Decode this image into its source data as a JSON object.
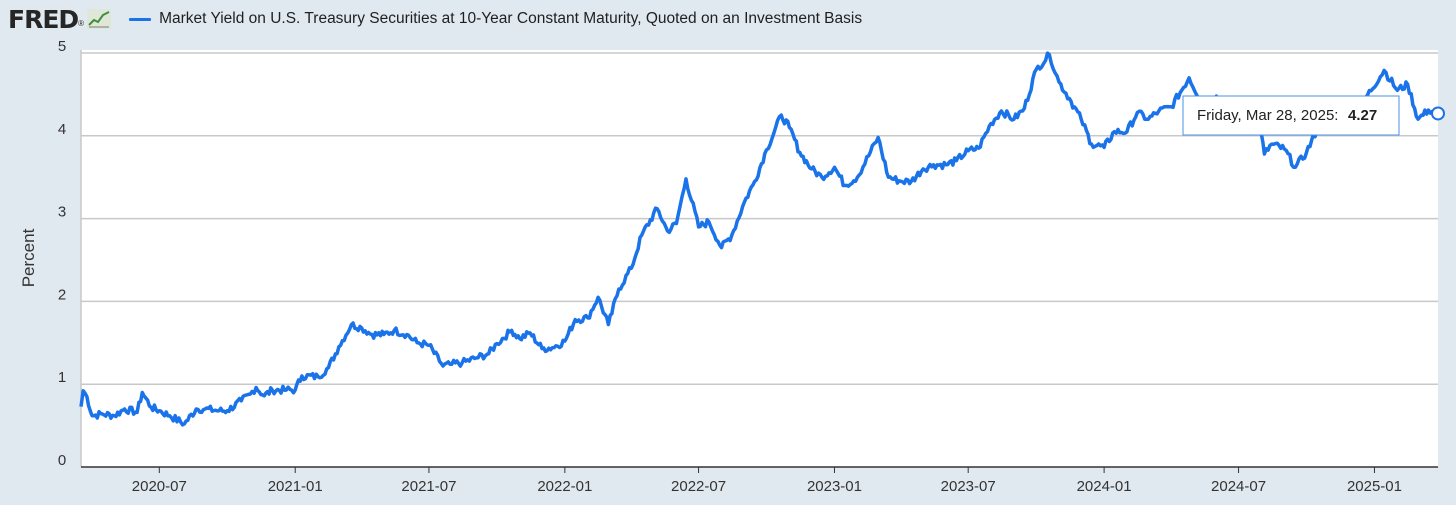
{
  "header": {
    "logo_text": "FRED",
    "logo_reg": "®",
    "logo_icon": "line-chart-icon",
    "series_label": "Market Yield on U.S. Treasury Securities at 10-Year Constant Maturity, Quoted on an Investment Basis"
  },
  "colors": {
    "line": "#1a73e8",
    "background": "#e1e9f0",
    "plot": "#ffffff",
    "grid": "#c8c8c8"
  },
  "tooltip": {
    "date": "Friday, Mar 28, 2025:",
    "value": "4.27"
  },
  "chart_data": {
    "type": "line",
    "ylabel": "Percent",
    "ylim": [
      0,
      5
    ],
    "yticks": [
      "0",
      "1",
      "2",
      "3",
      "4",
      "5"
    ],
    "xlim": [
      "2020-03-17",
      "2025-03-28"
    ],
    "xticks": [
      {
        "date": "2020-07-01",
        "label": "2020-07"
      },
      {
        "date": "2021-01-01",
        "label": "2021-01"
      },
      {
        "date": "2021-07-01",
        "label": "2021-07"
      },
      {
        "date": "2022-01-01",
        "label": "2022-01"
      },
      {
        "date": "2022-07-01",
        "label": "2022-07"
      },
      {
        "date": "2023-01-01",
        "label": "2023-01"
      },
      {
        "date": "2023-07-01",
        "label": "2023-07"
      },
      {
        "date": "2024-01-01",
        "label": "2024-01"
      },
      {
        "date": "2024-07-01",
        "label": "2024-07"
      },
      {
        "date": "2025-01-01",
        "label": "2025-01"
      }
    ],
    "grid": true,
    "legend": "top-left",
    "series": [
      {
        "name": "Market Yield on U.S. Treasury Securities at 10-Year Constant Maturity, Quoted on an Investment Basis",
        "x": [
          "2020-03-17",
          "2020-03-20",
          "2020-03-25",
          "2020-04-01",
          "2020-04-15",
          "2020-05-01",
          "2020-05-15",
          "2020-06-01",
          "2020-06-08",
          "2020-06-20",
          "2020-07-01",
          "2020-07-15",
          "2020-08-04",
          "2020-08-20",
          "2020-09-01",
          "2020-09-20",
          "2020-10-01",
          "2020-10-20",
          "2020-11-01",
          "2020-11-09",
          "2020-11-20",
          "2020-12-01",
          "2020-12-20",
          "2021-01-01",
          "2021-01-10",
          "2021-02-01",
          "2021-02-15",
          "2021-03-01",
          "2021-03-18",
          "2021-04-01",
          "2021-04-15",
          "2021-05-01",
          "2021-05-15",
          "2021-06-01",
          "2021-06-15",
          "2021-07-01",
          "2021-07-20",
          "2021-08-01",
          "2021-08-15",
          "2021-09-01",
          "2021-09-20",
          "2021-10-01",
          "2021-10-21",
          "2021-11-01",
          "2021-11-15",
          "2021-12-01",
          "2021-12-15",
          "2022-01-01",
          "2022-01-15",
          "2022-02-01",
          "2022-02-15",
          "2022-03-01",
          "2022-03-15",
          "2022-04-01",
          "2022-04-15",
          "2022-05-06",
          "2022-05-20",
          "2022-06-01",
          "2022-06-14",
          "2022-07-01",
          "2022-07-15",
          "2022-08-01",
          "2022-08-15",
          "2022-09-01",
          "2022-09-15",
          "2022-10-01",
          "2022-10-21",
          "2022-11-01",
          "2022-11-15",
          "2022-12-01",
          "2022-12-15",
          "2023-01-01",
          "2023-01-15",
          "2023-02-01",
          "2023-03-01",
          "2023-03-15",
          "2023-04-01",
          "2023-04-15",
          "2023-05-01",
          "2023-05-15",
          "2023-06-01",
          "2023-06-15",
          "2023-07-01",
          "2023-07-15",
          "2023-08-01",
          "2023-08-15",
          "2023-09-01",
          "2023-09-15",
          "2023-10-01",
          "2023-10-19",
          "2023-11-01",
          "2023-11-15",
          "2023-12-01",
          "2023-12-15",
          "2024-01-01",
          "2024-01-15",
          "2024-02-01",
          "2024-02-15",
          "2024-03-01",
          "2024-03-15",
          "2024-04-01",
          "2024-04-25",
          "2024-05-15",
          "2024-06-01",
          "2024-06-15",
          "2024-07-01",
          "2024-07-15",
          "2024-08-01",
          "2024-08-05",
          "2024-08-15",
          "2024-09-01",
          "2024-09-16",
          "2024-10-01",
          "2024-10-15",
          "2024-11-01",
          "2024-11-15",
          "2024-12-01",
          "2024-12-15",
          "2025-01-14",
          "2025-02-01",
          "2025-02-15",
          "2025-03-01",
          "2025-03-15",
          "2025-03-28"
        ],
        "values": [
          0.73,
          0.92,
          0.85,
          0.62,
          0.64,
          0.62,
          0.7,
          0.66,
          0.9,
          0.72,
          0.68,
          0.62,
          0.52,
          0.7,
          0.7,
          0.68,
          0.68,
          0.8,
          0.88,
          0.96,
          0.86,
          0.93,
          0.93,
          0.93,
          1.1,
          1.09,
          1.2,
          1.45,
          1.72,
          1.68,
          1.6,
          1.6,
          1.65,
          1.6,
          1.5,
          1.47,
          1.22,
          1.24,
          1.26,
          1.31,
          1.37,
          1.49,
          1.65,
          1.55,
          1.62,
          1.43,
          1.44,
          1.52,
          1.78,
          1.8,
          2.05,
          1.72,
          2.15,
          2.4,
          2.8,
          3.12,
          2.85,
          2.94,
          3.48,
          2.9,
          2.96,
          2.65,
          2.8,
          3.2,
          3.45,
          3.83,
          4.25,
          4.1,
          3.8,
          3.6,
          3.5,
          3.62,
          3.4,
          3.5,
          3.98,
          3.5,
          3.45,
          3.45,
          3.6,
          3.65,
          3.65,
          3.7,
          3.82,
          3.85,
          4.15,
          4.3,
          4.2,
          4.33,
          4.8,
          4.98,
          4.65,
          4.45,
          4.2,
          3.9,
          3.86,
          4.05,
          4.05,
          4.28,
          4.2,
          4.3,
          4.35,
          4.7,
          4.36,
          4.48,
          4.25,
          4.37,
          4.2,
          4.02,
          3.78,
          3.9,
          3.84,
          3.62,
          3.8,
          4.07,
          4.3,
          4.45,
          4.18,
          4.39,
          4.79,
          4.55,
          4.62,
          4.2,
          4.31,
          4.27
        ]
      }
    ]
  }
}
